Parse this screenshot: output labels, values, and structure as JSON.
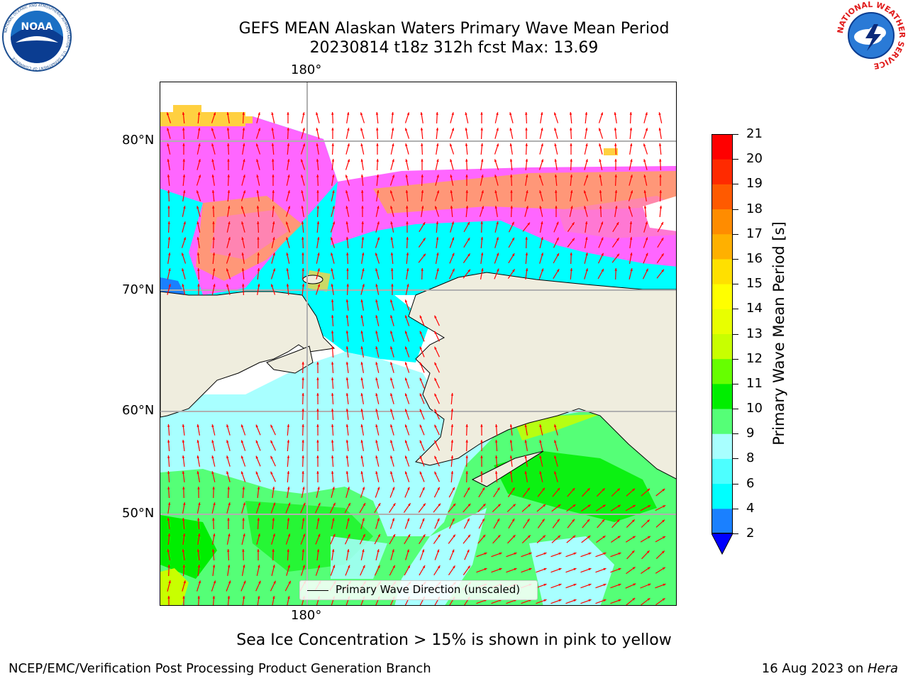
{
  "header": {
    "title_line1": "GEFS MEAN Alaskan Waters Primary Wave Mean Period",
    "title_line2": "20230814 t18z 312h fcst   Max: 13.69"
  },
  "logos": {
    "noaa_text": "NOAA",
    "noaa_ring": "NATIONAL OCEANIC AND ATMOSPHERIC ADMINISTRATION · U.S. DEPARTMENT OF COMMERCE",
    "nws_ring": "NATIONAL WEATHER SERVICE"
  },
  "map": {
    "lon_label_top": "180°",
    "lon_label_bottom": "180°",
    "lat_labels": [
      "80°N",
      "70°N",
      "60°N",
      "50°N"
    ],
    "legend_label": "Primary Wave Direction (unscaled)",
    "colors": {
      "land": "#efedde",
      "ice_pink": "#ff66ff",
      "ice_orange": "#ffa060",
      "ice_yellow": "#ffd040",
      "period_2_4": "#1a80ff",
      "period_4_6": "#00ffff",
      "period_6_8": "#4dffff",
      "period_8_9": "#a8ffff",
      "period_9_10": "#55ff77",
      "period_10_11": "#00ee00",
      "period_12_13": "#c8ff00",
      "arrow": "#ff0000"
    }
  },
  "colorbar": {
    "label": "Primary Wave Mean Period [s]",
    "ticks": [
      "2",
      "4",
      "6",
      "8",
      "9",
      "10",
      "11",
      "12",
      "13",
      "14",
      "15",
      "16",
      "17",
      "18",
      "19",
      "20",
      "21"
    ],
    "colors": [
      "#0050ff",
      "#1a80ff",
      "#00ffff",
      "#4dffff",
      "#a8ffff",
      "#55ff77",
      "#00ee00",
      "#66ff00",
      "#c8ff00",
      "#e8ff00",
      "#ffff00",
      "#ffe000",
      "#ffb000",
      "#ff8c00",
      "#ff5a00",
      "#ff2a00",
      "#ff0000"
    ]
  },
  "caption": "Sea Ice Concentration > 15% is shown in pink to yellow",
  "footer": {
    "left": "NCEP/EMC/Verification Post Processing Product Generation Branch",
    "right_date": "16 Aug 2023 on ",
    "right_host": "Hera"
  }
}
